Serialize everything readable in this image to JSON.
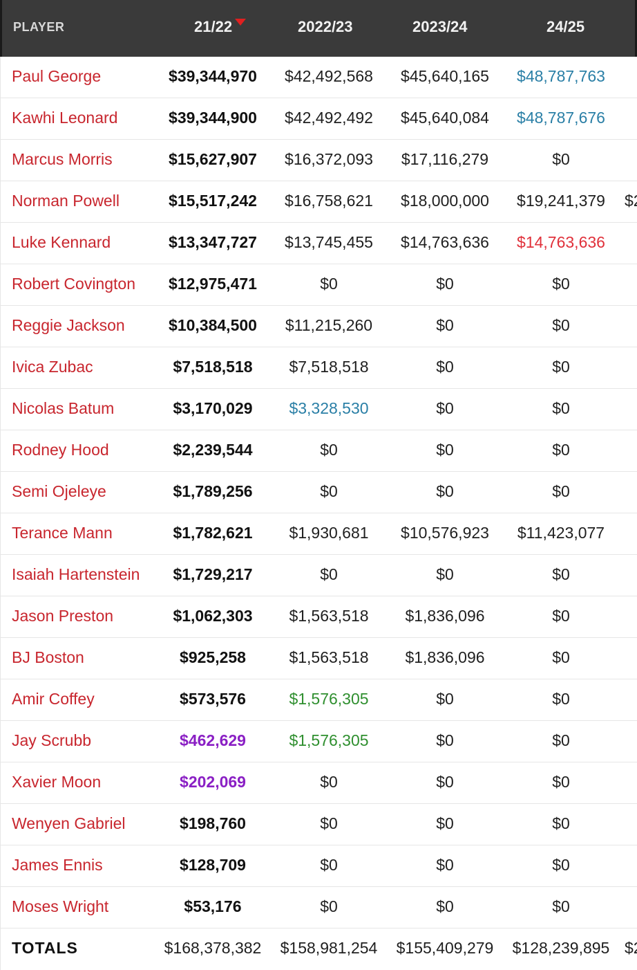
{
  "header": {
    "player": "PLAYER",
    "col_2122": "21/22",
    "col_2223": "2022/23",
    "col_2324": "2023/24",
    "col_2425": "24/25"
  },
  "rows": [
    {
      "name": "Paul George",
      "y2122": "$39,344,970",
      "y2223": "$42,492,568",
      "y2324": "$45,640,165",
      "y2425": "$48,787,763",
      "y2526": ""
    },
    {
      "name": "Kawhi Leonard",
      "y2122": "$39,344,900",
      "y2223": "$42,492,492",
      "y2324": "$45,640,084",
      "y2425": "$48,787,676",
      "y2526": ""
    },
    {
      "name": "Marcus Morris",
      "y2122": "$15,627,907",
      "y2223": "$16,372,093",
      "y2324": "$17,116,279",
      "y2425": "$0",
      "y2526": ""
    },
    {
      "name": "Norman Powell",
      "y2122": "$15,517,242",
      "y2223": "$16,758,621",
      "y2324": "$18,000,000",
      "y2425": "$19,241,379",
      "y2526": "$2"
    },
    {
      "name": "Luke Kennard",
      "y2122": "$13,347,727",
      "y2223": "$13,745,455",
      "y2324": "$14,763,636",
      "y2425": "$14,763,636",
      "y2526": ""
    },
    {
      "name": "Robert Covington",
      "y2122": "$12,975,471",
      "y2223": "$0",
      "y2324": "$0",
      "y2425": "$0",
      "y2526": ""
    },
    {
      "name": "Reggie Jackson",
      "y2122": "$10,384,500",
      "y2223": "$11,215,260",
      "y2324": "$0",
      "y2425": "$0",
      "y2526": ""
    },
    {
      "name": "Ivica Zubac",
      "y2122": "$7,518,518",
      "y2223": "$7,518,518",
      "y2324": "$0",
      "y2425": "$0",
      "y2526": ""
    },
    {
      "name": "Nicolas Batum",
      "y2122": "$3,170,029",
      "y2223": "$3,328,530",
      "y2324": "$0",
      "y2425": "$0",
      "y2526": ""
    },
    {
      "name": "Rodney Hood",
      "y2122": "$2,239,544",
      "y2223": "$0",
      "y2324": "$0",
      "y2425": "$0",
      "y2526": ""
    },
    {
      "name": "Semi Ojeleye",
      "y2122": "$1,789,256",
      "y2223": "$0",
      "y2324": "$0",
      "y2425": "$0",
      "y2526": ""
    },
    {
      "name": "Terance Mann",
      "y2122": "$1,782,621",
      "y2223": "$1,930,681",
      "y2324": "$10,576,923",
      "y2425": "$11,423,077",
      "y2526": ""
    },
    {
      "name": "Isaiah Hartenstein",
      "y2122": "$1,729,217",
      "y2223": "$0",
      "y2324": "$0",
      "y2425": "$0",
      "y2526": ""
    },
    {
      "name": "Jason Preston",
      "y2122": "$1,062,303",
      "y2223": "$1,563,518",
      "y2324": "$1,836,096",
      "y2425": "$0",
      "y2526": ""
    },
    {
      "name": "BJ Boston",
      "y2122": "$925,258",
      "y2223": "$1,563,518",
      "y2324": "$1,836,096",
      "y2425": "$0",
      "y2526": ""
    },
    {
      "name": "Amir Coffey",
      "y2122": "$573,576",
      "y2223": "$1,576,305",
      "y2324": "$0",
      "y2425": "$0",
      "y2526": ""
    },
    {
      "name": "Jay Scrubb",
      "y2122": "$462,629",
      "y2223": "$1,576,305",
      "y2324": "$0",
      "y2425": "$0",
      "y2526": ""
    },
    {
      "name": "Xavier Moon",
      "y2122": "$202,069",
      "y2223": "$0",
      "y2324": "$0",
      "y2425": "$0",
      "y2526": ""
    },
    {
      "name": "Wenyen Gabriel",
      "y2122": "$198,760",
      "y2223": "$0",
      "y2324": "$0",
      "y2425": "$0",
      "y2526": ""
    },
    {
      "name": "James Ennis",
      "y2122": "$128,709",
      "y2223": "$0",
      "y2324": "$0",
      "y2425": "$0",
      "y2526": ""
    },
    {
      "name": "Moses Wright",
      "y2122": "$53,176",
      "y2223": "$0",
      "y2324": "$0",
      "y2425": "$0",
      "y2526": ""
    }
  ],
  "totals": {
    "label": "TOTALS",
    "y2122": "$168,378,382",
    "y2223": "$158,981,254",
    "y2324": "$155,409,279",
    "y2425": "$128,239,895",
    "y2526": "$2"
  },
  "colors": {
    "header_bg": "#3a3a3a",
    "player_name": "#c8262e",
    "player_option": "#2a7fa6",
    "team_option": "#e0303a",
    "qualifying_offer": "#2f8f2f",
    "two_way": "#8a1fc4",
    "sort_arrow": "#e02020"
  }
}
